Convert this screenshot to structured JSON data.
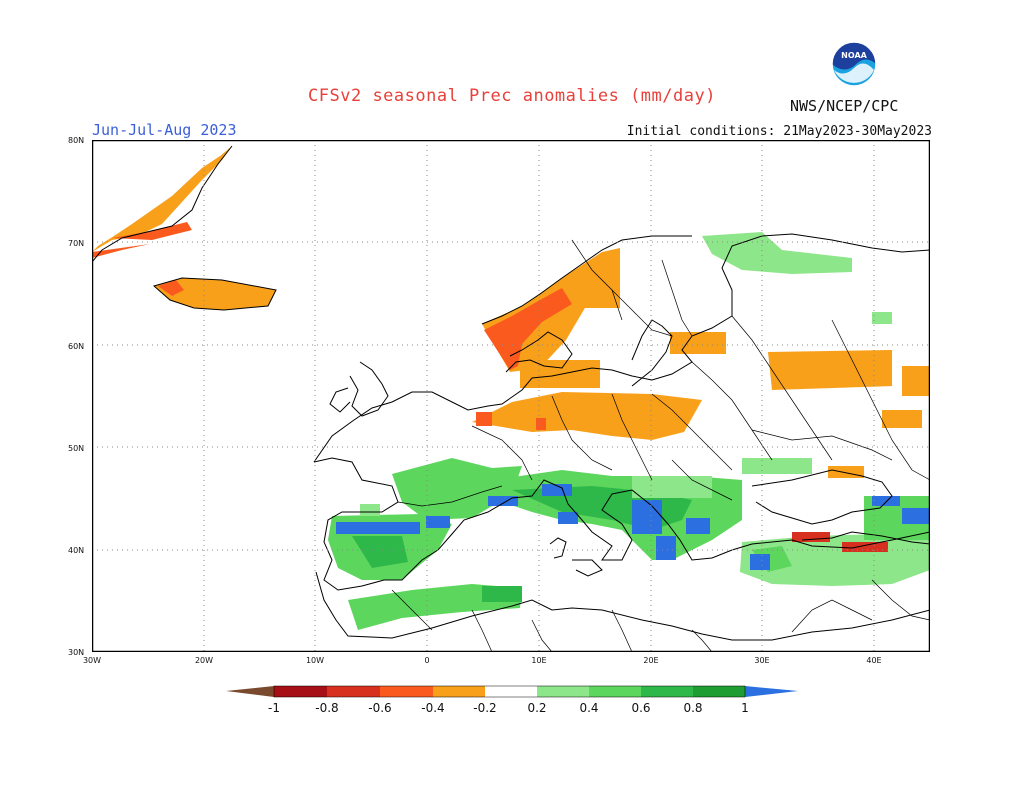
{
  "header": {
    "title": "CFSv2 seasonal Prec anomalies (mm/day)",
    "season": "Jun-Jul-Aug 2023",
    "initial_conditions": "Initial conditions: 21May2023-30May2023",
    "agency": "NWS/NCEP/CPC",
    "logo_text": "NOAA"
  },
  "map": {
    "lat_labels": [
      "80N",
      "70N",
      "60N",
      "50N",
      "40N",
      "30N"
    ],
    "lon_labels": [
      "30W",
      "20W",
      "10W",
      "0",
      "10E",
      "20E",
      "30E",
      "40E"
    ],
    "lat_range": [
      30,
      80
    ],
    "lon_range": [
      -30,
      45
    ],
    "grid": "dotted"
  },
  "colorbar": {
    "labels": [
      "-1",
      "-0.8",
      "-0.6",
      "-0.4",
      "-0.2",
      "0.2",
      "0.4",
      "0.6",
      "0.8",
      "1"
    ],
    "colors": {
      "lt_m1": "#7a4a2e",
      "m1_m08": "#a50f15",
      "m08_m06": "#d7301f",
      "m06_m04": "#fb5a1f",
      "m04_m02": "#f9a01b",
      "m02_02": "#ffffff",
      "p02_p04": "#8ee68a",
      "p04_p06": "#5cd65c",
      "p06_p08": "#2fb84a",
      "p08_p1": "#1e9e32",
      "gt_p1": "#2c6fe0"
    }
  }
}
